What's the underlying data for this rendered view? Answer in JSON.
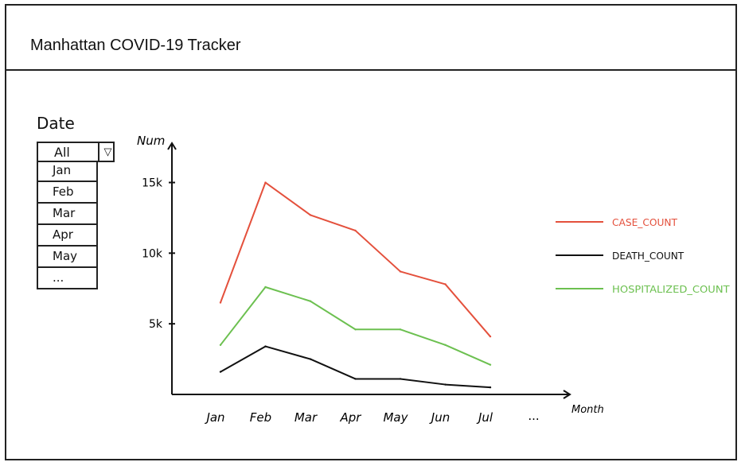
{
  "app": {
    "title": "Manhattan COVID-19 Tracker"
  },
  "filter": {
    "label": "Date",
    "selected": "All",
    "caret_icon": "▽",
    "options": [
      "Jan",
      "Feb",
      "Mar",
      "Apr",
      "May",
      "..."
    ]
  },
  "chart_data": {
    "type": "line",
    "ylabel": "Num",
    "xlabel": "Month",
    "categories": [
      "Jan",
      "Feb",
      "Mar",
      "Apr",
      "May",
      "Jun",
      "Jul"
    ],
    "extra_category_label": "...",
    "yticks": [
      "5k",
      "10k",
      "15k"
    ],
    "ylim": [
      0,
      17000
    ],
    "legend_position": "right",
    "series": [
      {
        "name": "CASE_COUNT",
        "color": "#e4503c",
        "values": [
          6500,
          15000,
          12700,
          11600,
          8700,
          7800,
          4100
        ]
      },
      {
        "name": "DEATH_COUNT",
        "color": "#111111",
        "values": [
          1600,
          3400,
          2500,
          1100,
          1100,
          700,
          500
        ]
      },
      {
        "name": "HOSPITALIZED_COUNT",
        "color": "#6cc050",
        "values": [
          3500,
          7600,
          6600,
          4600,
          4600,
          3500,
          2100
        ]
      }
    ]
  }
}
